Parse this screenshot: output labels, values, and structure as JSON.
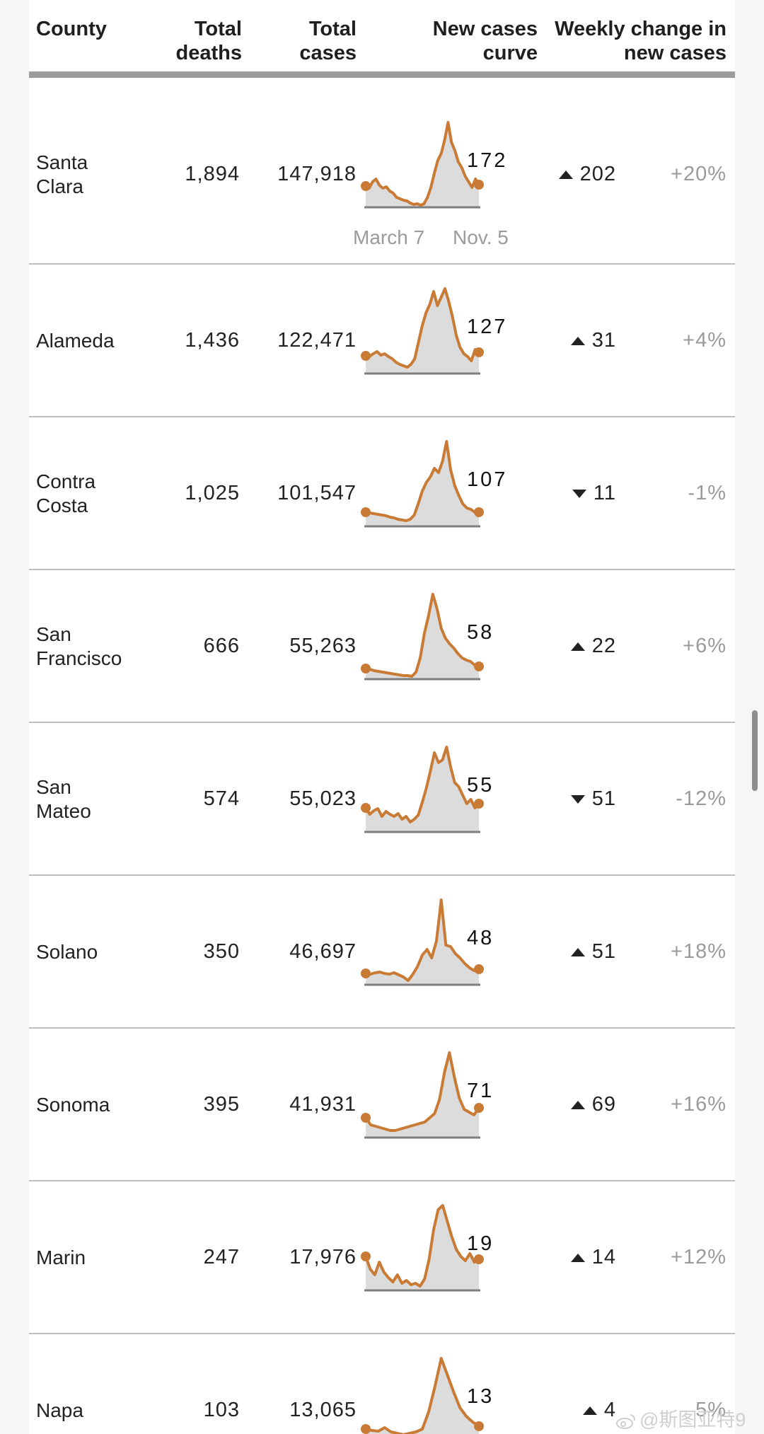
{
  "header": {
    "county": "County",
    "deaths": [
      "Total",
      "deaths"
    ],
    "cases": [
      "Total",
      "cases"
    ],
    "curve": [
      "New cases",
      "curve"
    ],
    "weekly": [
      "Weekly change in",
      "new cases"
    ]
  },
  "axis": {
    "start": "March 7",
    "end": "Nov. 5"
  },
  "rows": [
    {
      "county": [
        "Santa",
        "Clara"
      ],
      "deaths": "1,894",
      "cases": "147,918",
      "curve_label": "172",
      "direction": "up",
      "change": "202",
      "pct": "+20%",
      "curve": [
        30,
        27,
        36,
        40,
        31,
        27,
        29,
        23,
        20,
        14,
        12,
        10,
        9,
        6,
        4,
        5,
        3,
        5,
        14,
        28,
        48,
        66,
        76,
        95,
        120,
        92,
        80,
        64,
        56,
        44,
        36,
        28,
        40,
        32
      ]
    },
    {
      "county": [
        "Alameda"
      ],
      "deaths": "1,436",
      "cases": "122,471",
      "curve_label": "127",
      "direction": "up",
      "change": "31",
      "pct": "+4%",
      "curve": [
        25,
        24,
        28,
        31,
        26,
        28,
        24,
        21,
        16,
        13,
        11,
        9,
        13,
        21,
        45,
        68,
        86,
        98,
        116,
        96,
        108,
        120,
        102,
        80,
        54,
        37,
        28,
        24,
        18,
        34,
        30
      ]
    },
    {
      "county": [
        "Contra",
        "Costa"
      ],
      "deaths": "1,025",
      "cases": "101,547",
      "curve_label": "107",
      "direction": "down",
      "change": "11",
      "pct": "-1%",
      "curve": [
        20,
        19,
        18,
        17,
        16,
        15,
        13,
        12,
        10,
        9,
        8,
        10,
        16,
        32,
        50,
        62,
        70,
        82,
        76,
        92,
        120,
        80,
        58,
        44,
        32,
        26,
        24,
        20,
        20
      ]
    },
    {
      "county": [
        "San",
        "Francisco"
      ],
      "deaths": "666",
      "cases": "55,263",
      "curve_label": "58",
      "direction": "up",
      "change": "22",
      "pct": "+6%",
      "curve": [
        15,
        14,
        12,
        11,
        10,
        9,
        8,
        7,
        6,
        5,
        5,
        4,
        10,
        30,
        65,
        90,
        120,
        100,
        72,
        58,
        50,
        44,
        36,
        30,
        27,
        25,
        20,
        18
      ]
    },
    {
      "county": [
        "San",
        "Mateo"
      ],
      "deaths": "574",
      "cases": "55,023",
      "curve_label": "55",
      "direction": "down",
      "change": "51",
      "pct": "-12%",
      "curve": [
        34,
        25,
        30,
        33,
        22,
        29,
        25,
        22,
        26,
        18,
        22,
        14,
        18,
        24,
        42,
        62,
        86,
        112,
        98,
        102,
        120,
        92,
        70,
        64,
        52,
        40,
        46,
        34,
        40
      ]
    },
    {
      "county": [
        "Solano"
      ],
      "deaths": "350",
      "cases": "46,697",
      "curve_label": "48",
      "direction": "up",
      "change": "51",
      "pct": "+18%",
      "curve": [
        16,
        15,
        17,
        18,
        16,
        15,
        17,
        14,
        11,
        6,
        15,
        26,
        42,
        50,
        38,
        62,
        120,
        56,
        54,
        44,
        38,
        30,
        24,
        20,
        22
      ]
    },
    {
      "county": [
        "Sonoma"
      ],
      "deaths": "395",
      "cases": "41,931",
      "curve_label": "71",
      "direction": "up",
      "change": "69",
      "pct": "+16%",
      "curve": [
        28,
        18,
        16,
        14,
        12,
        10,
        10,
        12,
        14,
        16,
        18,
        20,
        22,
        28,
        34,
        54,
        92,
        120,
        86,
        56,
        40,
        36,
        32,
        42
      ]
    },
    {
      "county": [
        "Marin"
      ],
      "deaths": "247",
      "cases": "17,976",
      "curve_label": "19",
      "direction": "up",
      "change": "14",
      "pct": "+12%",
      "curve": [
        48,
        30,
        22,
        40,
        26,
        18,
        12,
        22,
        10,
        14,
        8,
        10,
        6,
        16,
        44,
        86,
        114,
        120,
        98,
        76,
        58,
        48,
        42,
        52,
        40,
        44
      ]
    },
    {
      "county": [
        "Napa"
      ],
      "deaths": "103",
      "cases": "13,065",
      "curve_label": "13",
      "direction": "up",
      "change": "4",
      "pct": "5%",
      "curve": [
        20,
        18,
        17,
        22,
        16,
        14,
        12,
        14,
        16,
        20,
        44,
        80,
        120,
        96,
        72,
        50,
        38,
        30,
        24
      ]
    }
  ],
  "watermark": "@斯图亚特9",
  "colors": {
    "curve": "#c97b35",
    "area": "#dcdcdc",
    "baseline": "#7e7e7e",
    "rule": "#bdbdbd"
  }
}
